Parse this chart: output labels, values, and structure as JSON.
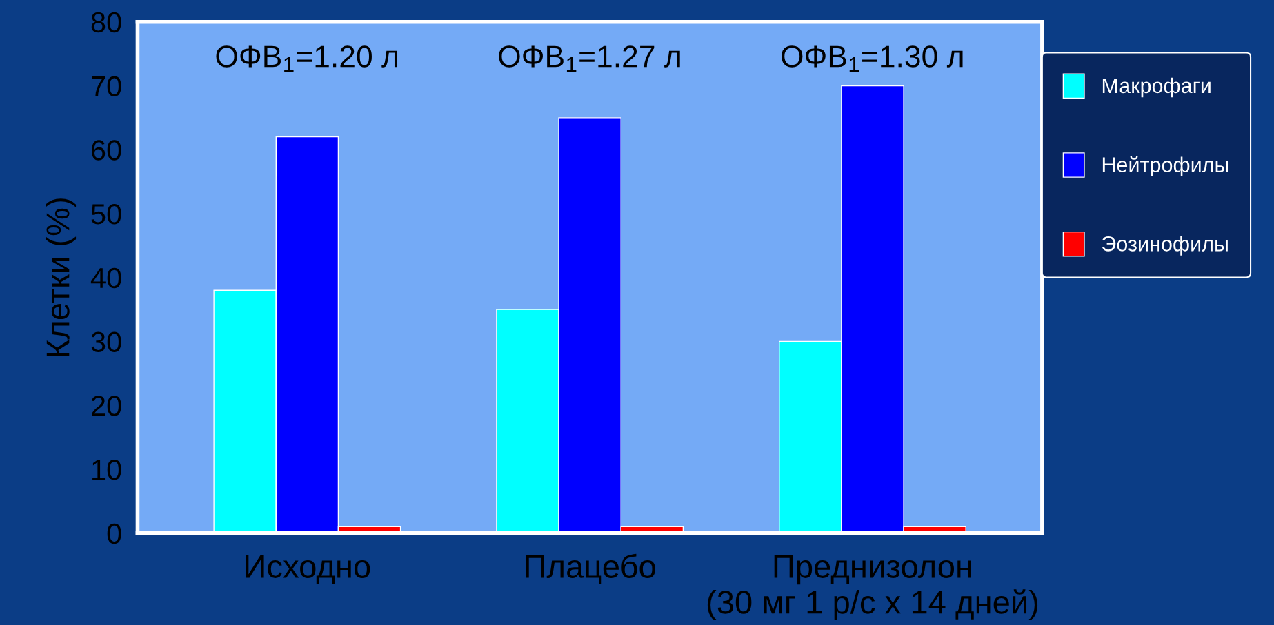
{
  "chart_data": {
    "type": "bar",
    "ylabel": "Клетки (%)",
    "categories": [
      "Исходно",
      "Плацебо",
      "Преднизолон\n(30 мг 1 р/с x 14 дней)"
    ],
    "series": [
      {
        "name": "Макрофаги",
        "color": "#00ffff",
        "values": [
          38,
          35,
          30
        ]
      },
      {
        "name": "Нейтрофилы",
        "color": "#0000ff",
        "values": [
          62,
          65,
          70
        ]
      },
      {
        "name": "Эозинофилы",
        "color": "#ff0000",
        "values": [
          1,
          1,
          1
        ]
      }
    ],
    "ylim": [
      0,
      80
    ],
    "yticks": [
      0,
      10,
      20,
      30,
      40,
      50,
      60,
      70,
      80
    ],
    "annotations": [
      "ОФВ$_{1}$=1.20 л",
      "ОФВ$_{1}$=1.27 л",
      "ОФВ$_{1}$=1.30 л"
    ],
    "grid": false,
    "legend": "right"
  }
}
